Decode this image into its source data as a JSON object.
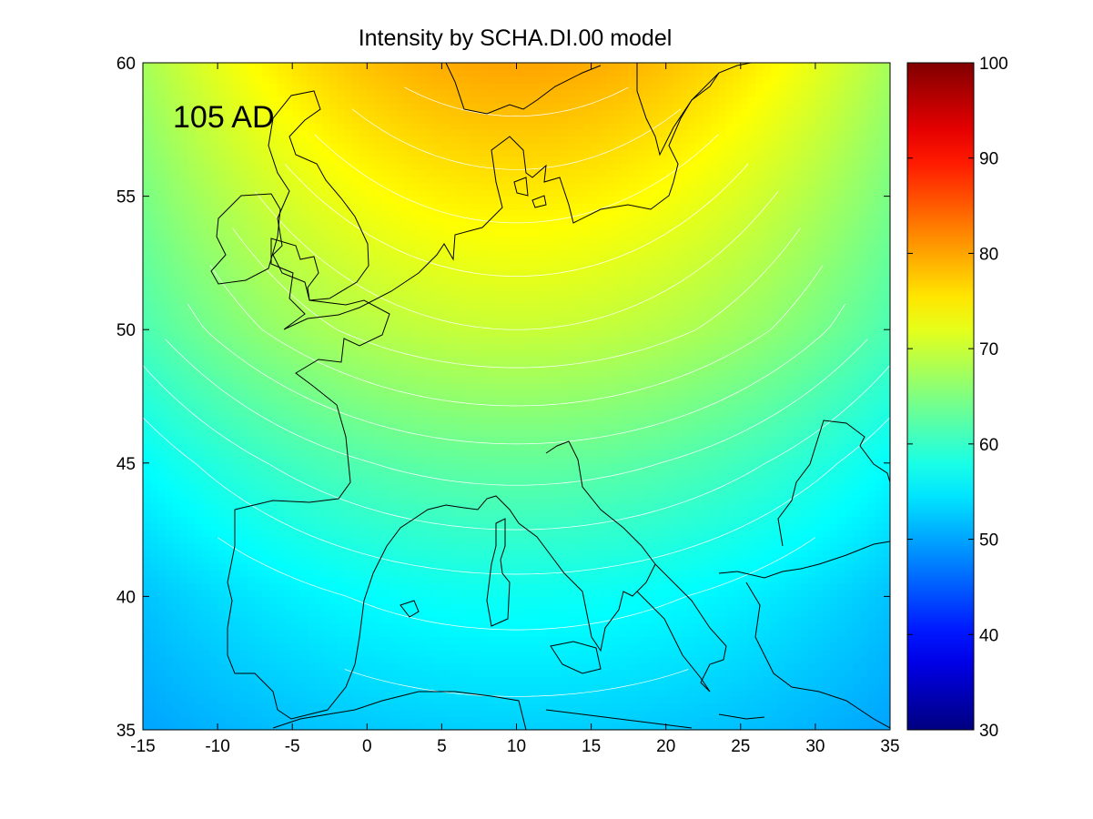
{
  "title": "Intensity by SCHA.DI.00 model",
  "annotation": "105 AD",
  "chart_data": {
    "type": "heatmap",
    "title": "Intensity by SCHA.DI.00 model",
    "annotation": "105 AD",
    "xlabel": "",
    "ylabel": "",
    "xlim": [
      -15,
      35
    ],
    "ylim": [
      35,
      60
    ],
    "x_ticks": [
      "-15",
      "-10",
      "-5",
      "0",
      "5",
      "10",
      "15",
      "20",
      "25",
      "30",
      "35"
    ],
    "y_ticks": [
      "35",
      "40",
      "45",
      "50",
      "55",
      "60"
    ],
    "colorbar": {
      "colormap": "jet",
      "range": [
        30,
        100
      ],
      "ticks": [
        "30",
        "40",
        "50",
        "60",
        "70",
        "80",
        "90",
        "100"
      ]
    },
    "field_samples": [
      {
        "lon": 10,
        "lat": 60,
        "value": 80
      },
      {
        "lon": 10,
        "lat": 55,
        "value": 75
      },
      {
        "lon": 10,
        "lat": 50,
        "value": 70
      },
      {
        "lon": 10,
        "lat": 45,
        "value": 63
      },
      {
        "lon": 10,
        "lat": 40,
        "value": 57
      },
      {
        "lon": 10,
        "lat": 35,
        "value": 53
      },
      {
        "lon": 35,
        "lat": 35,
        "value": 50
      },
      {
        "lon": -15,
        "lat": 35,
        "value": 50
      }
    ],
    "contour_lines": true,
    "contour_color": "#ffffff",
    "coastline_color": "#000000"
  }
}
